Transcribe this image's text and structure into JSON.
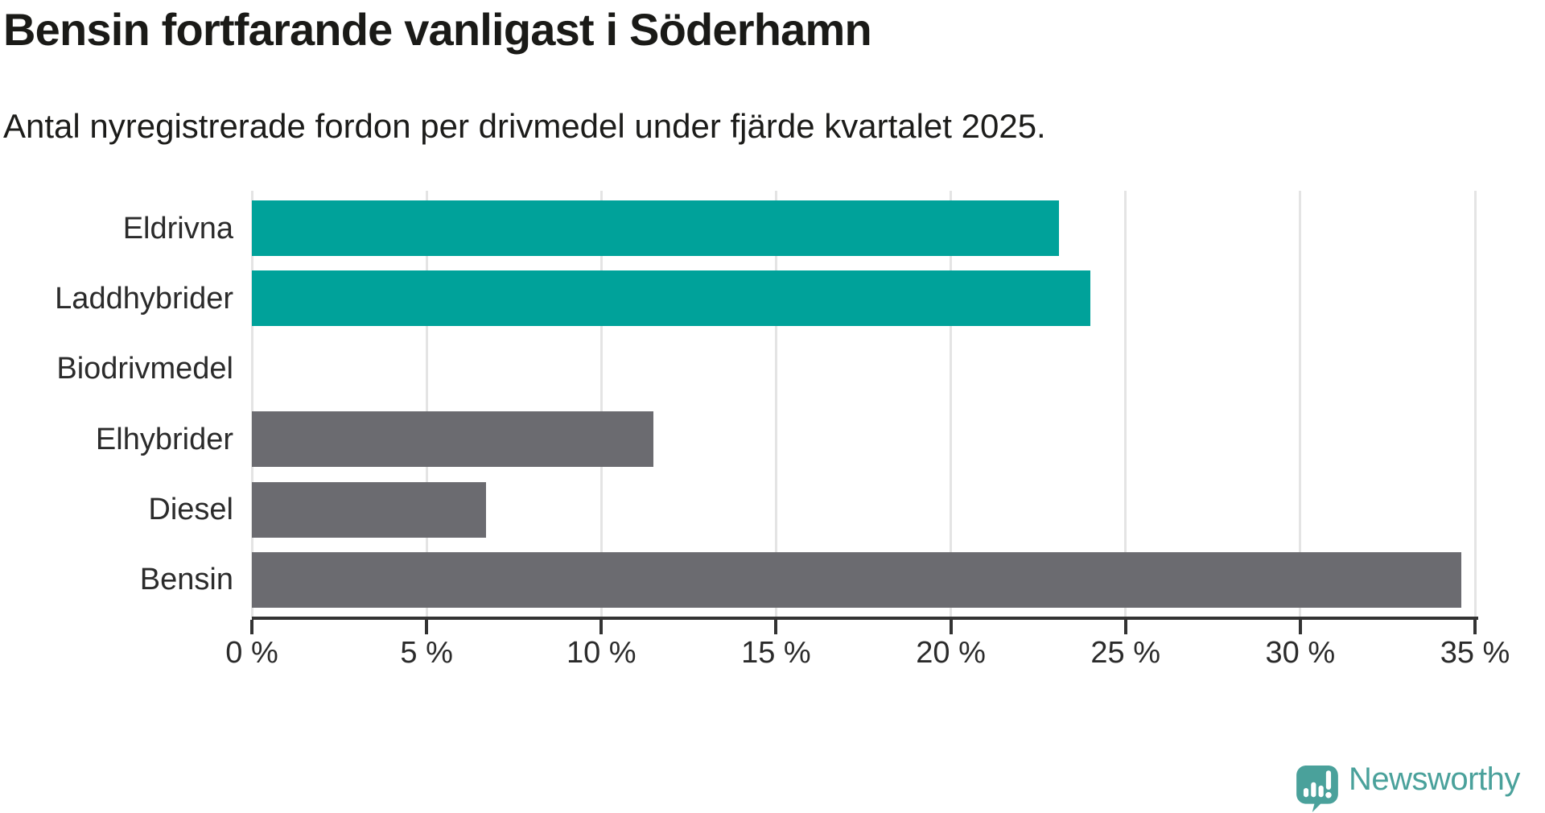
{
  "header": {
    "title": "Bensin fortfarande vanligast i Söderhamn",
    "subtitle": "Antal nyregistrerade fordon per drivmedel under fjärde kvartalet 2025."
  },
  "chart_data": {
    "type": "bar",
    "orientation": "horizontal",
    "title": "Bensin fortfarande vanligast i Söderhamn",
    "subtitle": "Antal nyregistrerade fordon per drivmedel under fjärde kvartalet 2025.",
    "categories": [
      "Eldrivna",
      "Laddhybrider",
      "Biodrivmedel",
      "Elhybrider",
      "Diesel",
      "Bensin"
    ],
    "values": [
      23.1,
      24,
      0,
      11.5,
      6.7,
      34.6
    ],
    "unit": "%",
    "bar_colors": [
      "#00a29a",
      "#00a29a",
      "#00a29a",
      "#6b6b70",
      "#6b6b70",
      "#6b6b70"
    ],
    "xlim": [
      0,
      35
    ],
    "x_ticks": [
      0,
      5,
      10,
      15,
      20,
      25,
      30,
      35
    ],
    "x_tick_labels": [
      "0 %",
      "5 %",
      "10 %",
      "15 %",
      "20 %",
      "25 %",
      "30 %",
      "35 %"
    ],
    "grid": true,
    "xlabel": "",
    "ylabel": ""
  },
  "branding": {
    "logo_text": "Newsworthy",
    "logo_icon": "newsworthy-speech-bubble-chart-icon",
    "logo_color": "#4aa19b"
  },
  "colors": {
    "teal_bar": "#00a29a",
    "gray_bar": "#6b6b70",
    "gridline": "#e4e4e4",
    "axis": "#333333",
    "title_text": "#1a1a17",
    "label_text": "#2b2b2b"
  }
}
